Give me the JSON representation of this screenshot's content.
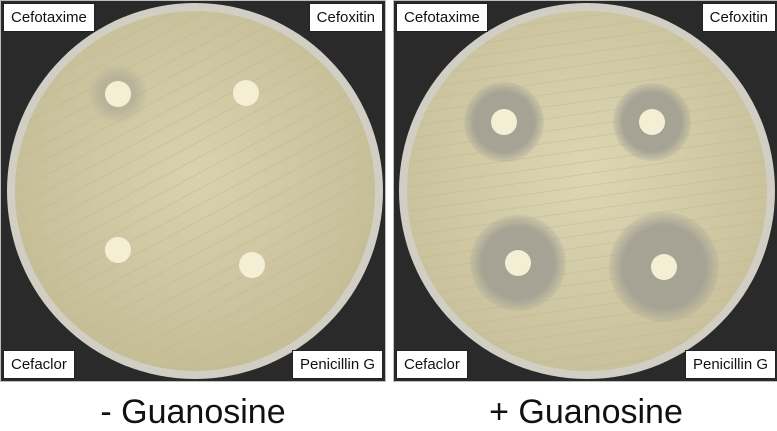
{
  "panels": [
    {
      "labels": {
        "top_left": "Cefotaxime",
        "top_right": "Cefoxitin",
        "bottom_left": "Cefaclor",
        "bottom_right": "Penicillin G"
      },
      "caption": "- Guanosine"
    },
    {
      "labels": {
        "top_left": "Cefotaxime",
        "top_right": "Cefoxitin",
        "bottom_left": "Cefaclor",
        "bottom_right": "Penicillin G"
      },
      "caption": "+ Guanosine"
    }
  ],
  "colors": {
    "lawn": "#cfc8a5",
    "inhibition_zone": "#a9a595",
    "disc": "#f4eed4",
    "background": "#2a2a2a"
  }
}
